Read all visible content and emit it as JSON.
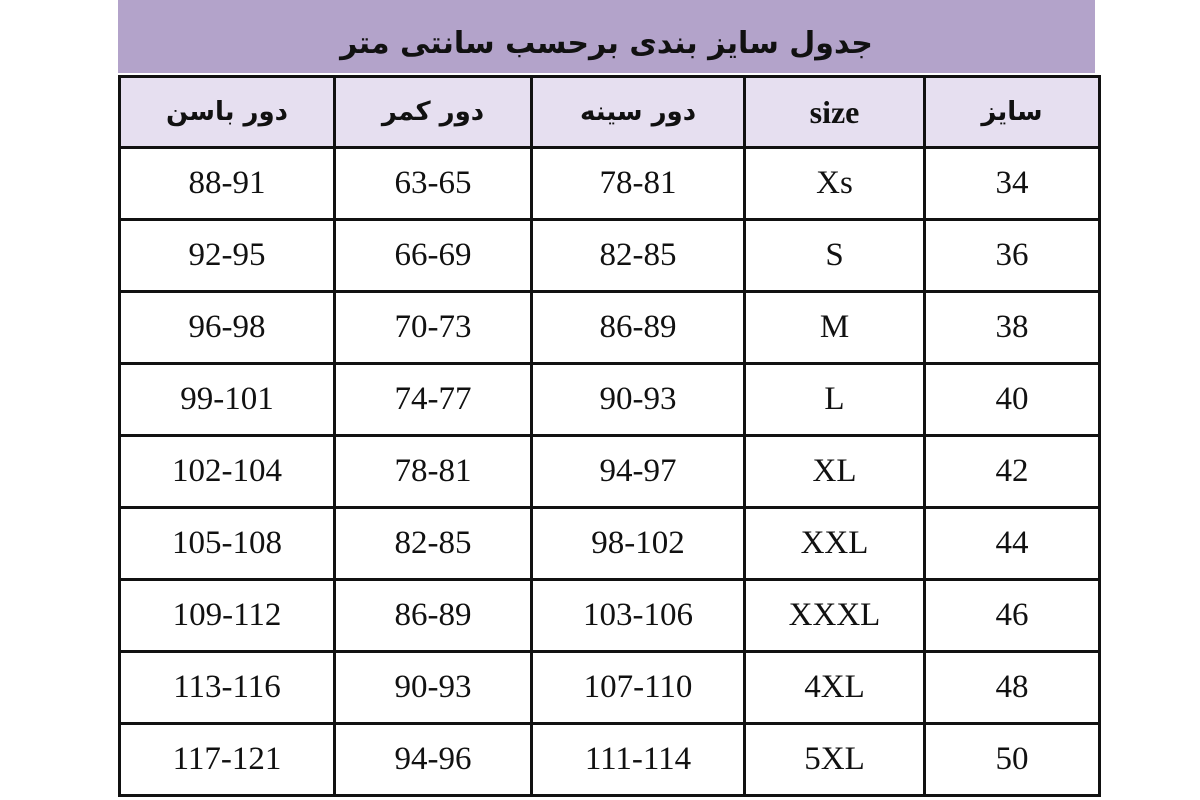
{
  "title": "جدول سایز بندی برحسب سانتی متر",
  "colors": {
    "title_band": "#b3a3ca",
    "header_bg": "#e6dff0",
    "border": "#111111"
  },
  "columns": [
    "دور باسن",
    "دور کمر",
    "دور سینه",
    "size",
    "سایز"
  ],
  "rows": [
    [
      "88-91",
      "63-65",
      "78-81",
      "Xs",
      "34"
    ],
    [
      "92-95",
      "66-69",
      "82-85",
      "S",
      "36"
    ],
    [
      "96-98",
      "70-73",
      "86-89",
      "M",
      "38"
    ],
    [
      "99-101",
      "74-77",
      "90-93",
      "L",
      "40"
    ],
    [
      "102-104",
      "78-81",
      "94-97",
      "XL",
      "42"
    ],
    [
      "105-108",
      "82-85",
      "98-102",
      "XXL",
      "44"
    ],
    [
      "109-112",
      "86-89",
      "103-106",
      "XXXL",
      "46"
    ],
    [
      "113-116",
      "90-93",
      "107-110",
      "4XL",
      "48"
    ],
    [
      "117-121",
      "94-96",
      "111-114",
      "5XL",
      "50"
    ]
  ]
}
